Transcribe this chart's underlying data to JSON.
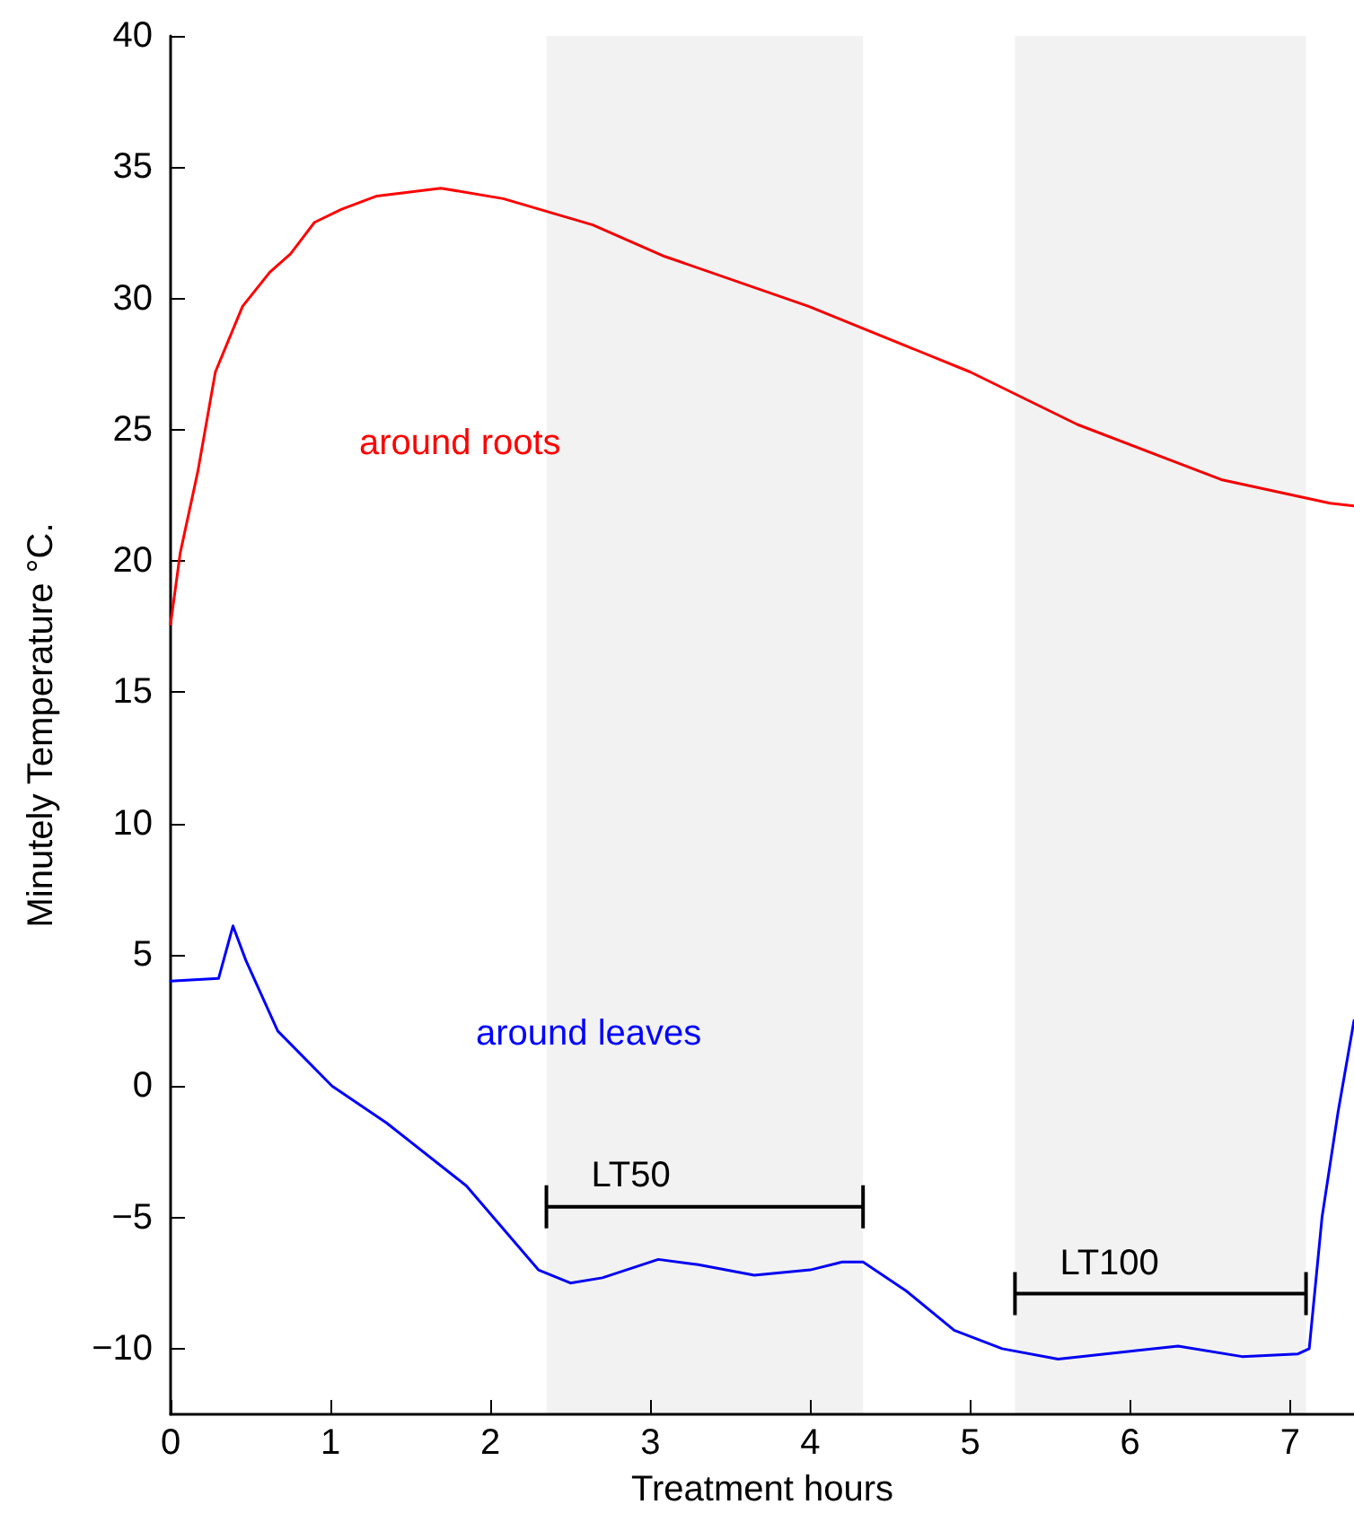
{
  "chart_data": {
    "type": "line",
    "xlabel": "Treatment hours",
    "ylabel": "Minutely Temperature °C.",
    "xlim": [
      0,
      7.4
    ],
    "xticks": [
      0,
      1,
      2,
      3,
      4,
      5,
      6,
      7
    ],
    "ylim": [
      -12.5,
      40
    ],
    "yticks": [
      -10,
      -5,
      0,
      5,
      10,
      15,
      20,
      25,
      30,
      35,
      40
    ],
    "grid": false,
    "legend": false,
    "marker": "none",
    "line_style": "solid",
    "series": [
      {
        "name": "around roots",
        "color": "#ff0000",
        "x": [
          0,
          0.06,
          0.17,
          0.28,
          0.45,
          0.62,
          0.75,
          0.9,
          1.07,
          1.29,
          1.69,
          2.08,
          2.64,
          3.09,
          3.99,
          5.0,
          5.67,
          6.57,
          7.25,
          7.4
        ],
        "values": [
          17.6,
          20.3,
          23.4,
          27.2,
          29.7,
          31.0,
          31.7,
          32.9,
          33.4,
          33.9,
          34.2,
          33.8,
          32.8,
          31.6,
          29.7,
          27.2,
          25.2,
          23.1,
          22.2,
          22.1
        ]
      },
      {
        "name": "around leaves",
        "color": "#0000ff",
        "x": [
          0,
          0.3,
          0.39,
          0.47,
          0.67,
          1.01,
          1.35,
          1.85,
          2.3,
          2.5,
          2.7,
          3.05,
          3.3,
          3.65,
          4.0,
          4.2,
          4.33,
          4.6,
          4.9,
          5.2,
          5.55,
          6.0,
          6.3,
          6.7,
          7.05,
          7.12,
          7.2,
          7.3,
          7.4
        ],
        "values": [
          4.0,
          4.1,
          6.1,
          4.8,
          2.1,
          0,
          -1.4,
          -3.8,
          -7.0,
          -7.5,
          -7.3,
          -6.6,
          -6.8,
          -7.2,
          -7.0,
          -6.7,
          -6.7,
          -7.8,
          -9.3,
          -10.0,
          -10.4,
          -10.1,
          -9.9,
          -10.3,
          -10.2,
          -10.0,
          -5,
          -1,
          2.5
        ]
      }
    ],
    "bands": [
      {
        "axis": "x",
        "from": 2.35,
        "to": 4.33,
        "label": "LT50",
        "color": "#000000"
      },
      {
        "axis": "x",
        "from": 5.28,
        "to": 7.1,
        "label": "LT100",
        "color": "#000000"
      }
    ]
  }
}
